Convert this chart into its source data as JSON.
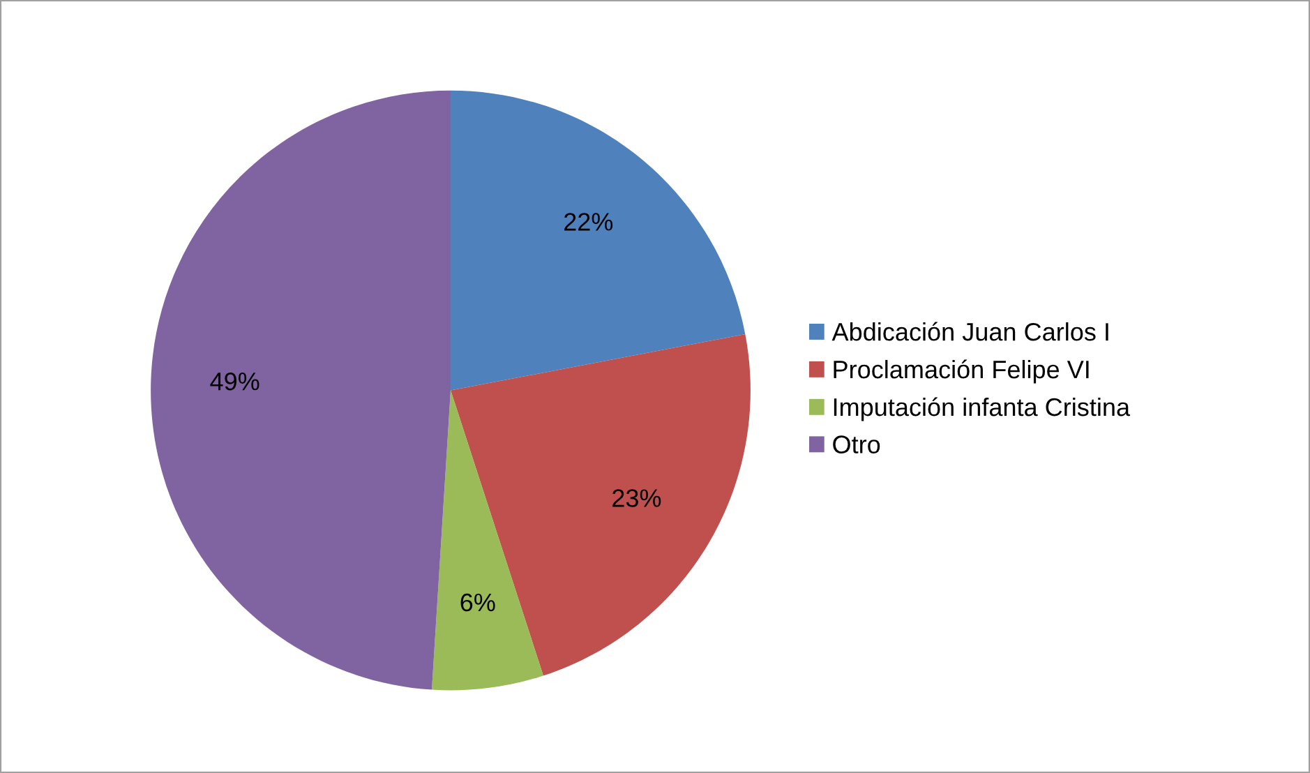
{
  "chart_data": {
    "type": "pie",
    "categories": [
      "Abdicación Juan Carlos I",
      "Proclamación Felipe VI",
      "Imputación infanta Cristina",
      "Otro"
    ],
    "values": [
      22,
      23,
      6,
      49
    ],
    "value_labels": [
      "22%",
      "23%",
      "6%",
      "49%"
    ],
    "colors": [
      "#4f81bd",
      "#c0504d",
      "#9bbb59",
      "#8064a2"
    ],
    "legend": "right"
  }
}
